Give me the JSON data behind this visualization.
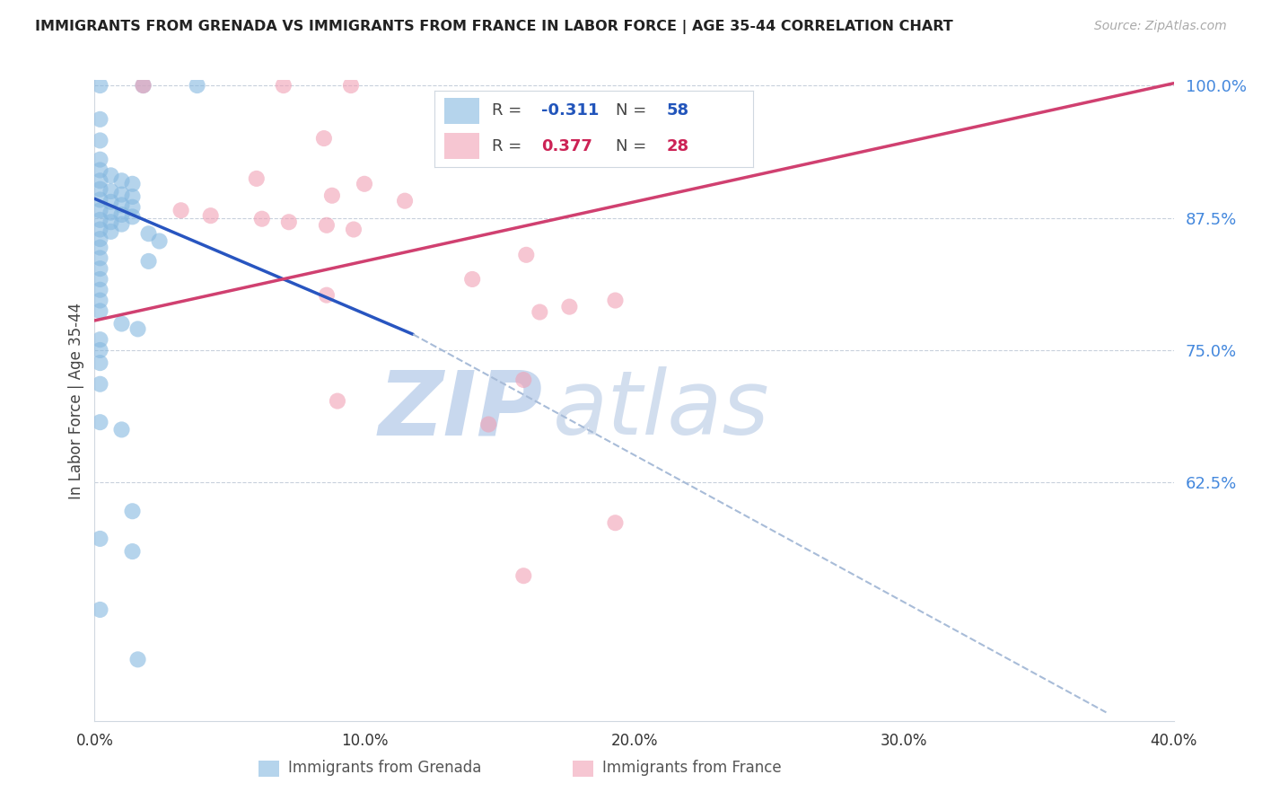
{
  "title": "IMMIGRANTS FROM GRENADA VS IMMIGRANTS FROM FRANCE IN LABOR FORCE | AGE 35-44 CORRELATION CHART",
  "source": "Source: ZipAtlas.com",
  "ylabel": "In Labor Force | Age 35-44",
  "xlim": [
    0.0,
    0.4
  ],
  "ylim": [
    0.4,
    1.005
  ],
  "yticks_right": [
    0.625,
    0.75,
    0.875,
    1.0
  ],
  "ytick_labels_right": [
    "62.5%",
    "75.0%",
    "87.5%",
    "100.0%"
  ],
  "xticks": [
    0.0,
    0.1,
    0.2,
    0.3,
    0.4
  ],
  "xtick_labels": [
    "0.0%",
    "10.0%",
    "20.0%",
    "30.0%",
    "40.0%"
  ],
  "legend_r_blue": "-0.311",
  "legend_n_blue": "58",
  "legend_r_pink": "0.377",
  "legend_n_pink": "28",
  "blue_color": "#85b8e0",
  "pink_color": "#f0a0b5",
  "blue_line_color": "#2855c0",
  "pink_line_color": "#d04070",
  "dash_color": "#a8bcd8",
  "blue_dots": [
    [
      0.002,
      1.0
    ],
    [
      0.018,
      1.0
    ],
    [
      0.038,
      1.0
    ],
    [
      0.002,
      0.968
    ],
    [
      0.002,
      0.948
    ],
    [
      0.002,
      0.93
    ],
    [
      0.002,
      0.92
    ],
    [
      0.006,
      0.915
    ],
    [
      0.002,
      0.91
    ],
    [
      0.01,
      0.91
    ],
    [
      0.014,
      0.907
    ],
    [
      0.002,
      0.902
    ],
    [
      0.006,
      0.9
    ],
    [
      0.01,
      0.897
    ],
    [
      0.014,
      0.895
    ],
    [
      0.002,
      0.892
    ],
    [
      0.006,
      0.89
    ],
    [
      0.01,
      0.887
    ],
    [
      0.014,
      0.885
    ],
    [
      0.002,
      0.882
    ],
    [
      0.006,
      0.88
    ],
    [
      0.01,
      0.878
    ],
    [
      0.014,
      0.876
    ],
    [
      0.002,
      0.873
    ],
    [
      0.006,
      0.871
    ],
    [
      0.01,
      0.869
    ],
    [
      0.002,
      0.864
    ],
    [
      0.006,
      0.862
    ],
    [
      0.02,
      0.86
    ],
    [
      0.002,
      0.855
    ],
    [
      0.024,
      0.853
    ],
    [
      0.002,
      0.847
    ],
    [
      0.002,
      0.837
    ],
    [
      0.02,
      0.834
    ],
    [
      0.002,
      0.827
    ],
    [
      0.002,
      0.817
    ],
    [
      0.002,
      0.807
    ],
    [
      0.002,
      0.797
    ],
    [
      0.002,
      0.787
    ],
    [
      0.01,
      0.775
    ],
    [
      0.016,
      0.77
    ],
    [
      0.002,
      0.76
    ],
    [
      0.002,
      0.75
    ],
    [
      0.002,
      0.738
    ],
    [
      0.002,
      0.718
    ],
    [
      0.002,
      0.682
    ],
    [
      0.01,
      0.675
    ],
    [
      0.014,
      0.598
    ],
    [
      0.002,
      0.572
    ],
    [
      0.014,
      0.56
    ],
    [
      0.002,
      0.505
    ],
    [
      0.016,
      0.458
    ]
  ],
  "pink_dots": [
    [
      0.018,
      1.0
    ],
    [
      0.07,
      1.0
    ],
    [
      0.095,
      1.0
    ],
    [
      0.145,
      0.967
    ],
    [
      0.085,
      0.95
    ],
    [
      0.155,
      0.936
    ],
    [
      0.06,
      0.912
    ],
    [
      0.1,
      0.907
    ],
    [
      0.088,
      0.896
    ],
    [
      0.115,
      0.891
    ],
    [
      0.032,
      0.882
    ],
    [
      0.043,
      0.877
    ],
    [
      0.062,
      0.874
    ],
    [
      0.072,
      0.871
    ],
    [
      0.086,
      0.868
    ],
    [
      0.096,
      0.864
    ],
    [
      0.16,
      0.84
    ],
    [
      0.14,
      0.817
    ],
    [
      0.086,
      0.802
    ],
    [
      0.193,
      0.797
    ],
    [
      0.176,
      0.791
    ],
    [
      0.165,
      0.786
    ],
    [
      0.159,
      0.722
    ],
    [
      0.09,
      0.702
    ],
    [
      0.146,
      0.68
    ],
    [
      0.193,
      0.587
    ],
    [
      0.159,
      0.537
    ]
  ],
  "blue_solid_line": [
    [
      0.0,
      0.893
    ],
    [
      0.118,
      0.765
    ]
  ],
  "blue_dash_line": [
    [
      0.118,
      0.765
    ],
    [
      0.375,
      0.408
    ]
  ],
  "pink_line": [
    [
      0.0,
      0.778
    ],
    [
      0.4,
      1.002
    ]
  ]
}
